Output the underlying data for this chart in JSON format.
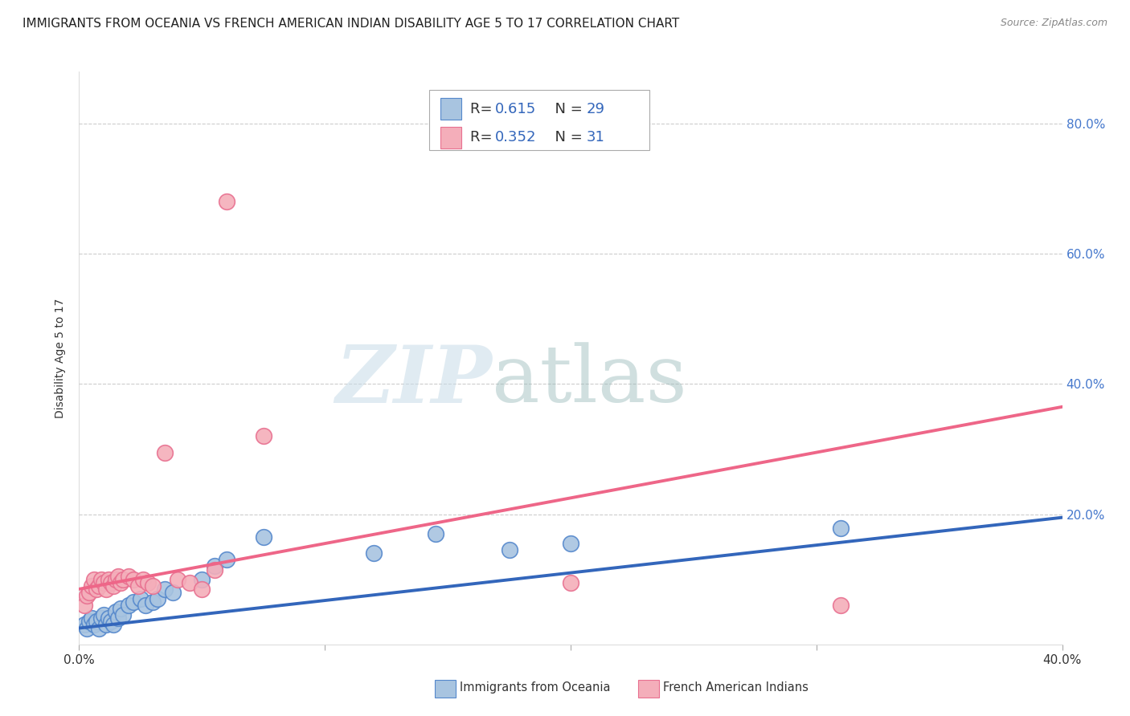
{
  "title": "IMMIGRANTS FROM OCEANIA VS FRENCH AMERICAN INDIAN DISABILITY AGE 5 TO 17 CORRELATION CHART",
  "source": "Source: ZipAtlas.com",
  "ylabel": "Disability Age 5 to 17",
  "right_yticks": [
    "80.0%",
    "60.0%",
    "40.0%",
    "20.0%"
  ],
  "right_ytick_vals": [
    0.8,
    0.6,
    0.4,
    0.2
  ],
  "xlim": [
    0.0,
    0.4
  ],
  "ylim": [
    0.0,
    0.88
  ],
  "color_blue": "#A8C4E0",
  "color_pink": "#F4AEBA",
  "color_blue_edge": "#5588CC",
  "color_pink_edge": "#E87090",
  "color_blue_line": "#3366BB",
  "color_pink_line": "#EE6688",
  "grid_color": "#CCCCCC",
  "background_color": "#FFFFFF",
  "title_fontsize": 11,
  "legend_fontsize": 13,
  "blue_scatter_x": [
    0.002,
    0.003,
    0.004,
    0.005,
    0.006,
    0.007,
    0.008,
    0.009,
    0.01,
    0.011,
    0.012,
    0.013,
    0.014,
    0.015,
    0.016,
    0.017,
    0.018,
    0.02,
    0.022,
    0.025,
    0.027,
    0.03,
    0.032,
    0.035,
    0.038,
    0.05,
    0.055,
    0.06,
    0.075,
    0.12,
    0.145,
    0.175,
    0.2,
    0.31
  ],
  "blue_scatter_y": [
    0.03,
    0.025,
    0.035,
    0.04,
    0.03,
    0.035,
    0.025,
    0.04,
    0.045,
    0.03,
    0.04,
    0.035,
    0.03,
    0.05,
    0.04,
    0.055,
    0.045,
    0.06,
    0.065,
    0.07,
    0.06,
    0.065,
    0.07,
    0.085,
    0.08,
    0.1,
    0.12,
    0.13,
    0.165,
    0.14,
    0.17,
    0.145,
    0.155,
    0.178
  ],
  "pink_scatter_x": [
    0.002,
    0.003,
    0.004,
    0.005,
    0.006,
    0.007,
    0.008,
    0.009,
    0.01,
    0.011,
    0.012,
    0.013,
    0.014,
    0.015,
    0.016,
    0.017,
    0.018,
    0.02,
    0.022,
    0.024,
    0.026,
    0.028,
    0.03,
    0.035,
    0.04,
    0.045,
    0.05,
    0.055,
    0.06,
    0.075,
    0.2,
    0.31
  ],
  "pink_scatter_y": [
    0.06,
    0.075,
    0.08,
    0.09,
    0.1,
    0.085,
    0.09,
    0.1,
    0.095,
    0.085,
    0.1,
    0.095,
    0.09,
    0.1,
    0.105,
    0.095,
    0.1,
    0.105,
    0.1,
    0.09,
    0.1,
    0.095,
    0.09,
    0.295,
    0.1,
    0.095,
    0.085,
    0.115,
    0.68,
    0.32,
    0.095,
    0.06
  ],
  "blue_line_x": [
    0.0,
    0.4
  ],
  "blue_line_y": [
    0.025,
    0.195
  ],
  "pink_line_x": [
    0.0,
    0.4
  ],
  "pink_line_y": [
    0.085,
    0.365
  ]
}
